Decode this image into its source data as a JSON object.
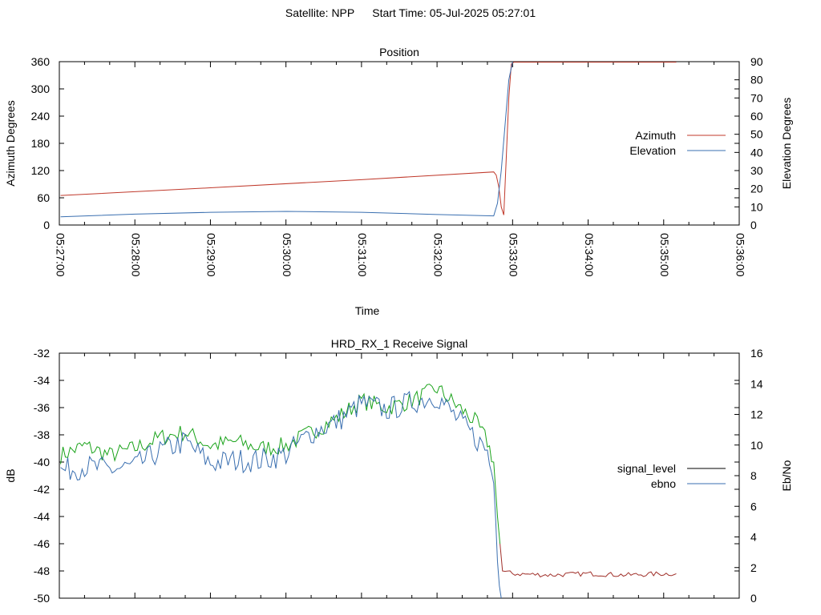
{
  "header": {
    "satellite": "Satellite: NPP",
    "start_time": "Start Time: 05-Jul-2025 05:27:01"
  },
  "colors": {
    "azimuth": "#c0392b",
    "elevation": "#3a6fb0",
    "signal_level_legend": "#000000",
    "signal_level": "#1aa31a",
    "signal_level_low": "#a0302a",
    "ebno": "#3a6fb0",
    "axes": "#000000"
  },
  "chart_data": [
    {
      "type": "line",
      "title": "Position",
      "xlabel": "Time",
      "ylabel": "Azimuth Degrees",
      "y2label": "Elevation Degrees",
      "xlim": [
        "05:27:00",
        "05:36:00"
      ],
      "xticks": [
        "05:27:00",
        "05:28:00",
        "05:29:00",
        "05:30:00",
        "05:31:00",
        "05:32:00",
        "05:33:00",
        "05:34:00",
        "05:35:00",
        "05:36:00"
      ],
      "ylim": [
        0,
        360
      ],
      "yticks": [
        0,
        60,
        120,
        180,
        240,
        300,
        360
      ],
      "y2lim": [
        0,
        90
      ],
      "y2ticks": [
        0,
        10,
        20,
        30,
        40,
        50,
        60,
        70,
        80,
        90
      ],
      "legend_position": "right",
      "series": [
        {
          "name": "Azimuth",
          "axis": "y",
          "x": [
            "05:27:01",
            "05:29:00",
            "05:31:00",
            "05:32:45",
            "05:32:47",
            "05:32:49",
            "05:32:51",
            "05:32:53",
            "05:32:55",
            "05:32:57",
            "05:32:59",
            "05:33:01",
            "05:35:10"
          ],
          "values": [
            65,
            82,
            100,
            117,
            110,
            85,
            40,
            22,
            150,
            280,
            355,
            359,
            359
          ]
        },
        {
          "name": "Elevation",
          "axis": "y2",
          "x": [
            "05:27:01",
            "05:28:00",
            "05:29:00",
            "05:30:00",
            "05:31:00",
            "05:32:00",
            "05:32:45",
            "05:32:48",
            "05:32:51",
            "05:32:54",
            "05:32:57",
            "05:33:00"
          ],
          "values": [
            4.5,
            6.0,
            7.0,
            7.5,
            7.0,
            5.8,
            5.0,
            12,
            30,
            55,
            80,
            90
          ]
        }
      ]
    },
    {
      "type": "line",
      "title": "HRD_RX_1 Receive Signal",
      "ylabel": "dB",
      "y2label": "Eb/No",
      "xlim": [
        "05:27:00",
        "05:36:00"
      ],
      "ylim": [
        -50,
        -32
      ],
      "yticks": [
        -50,
        -48,
        -46,
        -44,
        -42,
        -40,
        -38,
        -36,
        -34,
        -32
      ],
      "y2lim": [
        0,
        16
      ],
      "y2ticks": [
        0,
        2,
        4,
        6,
        8,
        10,
        12,
        14,
        16
      ],
      "legend_position": "right",
      "series": [
        {
          "name": "signal_level",
          "axis": "y",
          "x": [
            "05:27:01",
            "05:27:20",
            "05:27:40",
            "05:28:00",
            "05:28:20",
            "05:28:40",
            "05:29:00",
            "05:29:20",
            "05:29:40",
            "05:30:00",
            "05:30:20",
            "05:30:40",
            "05:31:00",
            "05:31:20",
            "05:31:40",
            "05:32:00",
            "05:32:15",
            "05:32:30",
            "05:32:40",
            "05:32:45",
            "05:32:48",
            "05:32:52",
            "05:33:00",
            "05:33:30",
            "05:34:00",
            "05:34:30",
            "05:35:00",
            "05:35:10"
          ],
          "values": [
            -39.5,
            -38.8,
            -39.5,
            -39.0,
            -38.2,
            -37.8,
            -38.8,
            -38.5,
            -39.0,
            -38.8,
            -37.8,
            -36.8,
            -35.5,
            -36.0,
            -35.5,
            -34.6,
            -35.8,
            -37.0,
            -38.5,
            -40.0,
            -44.0,
            -48.0,
            -48.2,
            -48.3,
            -48.2,
            -48.3,
            -48.2,
            -48.2
          ]
        },
        {
          "name": "ebno",
          "axis": "y2",
          "x": [
            "05:27:01",
            "05:27:20",
            "05:27:40",
            "05:28:00",
            "05:28:20",
            "05:28:40",
            "05:29:00",
            "05:29:20",
            "05:29:40",
            "05:30:00",
            "05:30:20",
            "05:30:40",
            "05:31:00",
            "05:31:20",
            "05:31:40",
            "05:32:00",
            "05:32:15",
            "05:32:30",
            "05:32:40",
            "05:32:45",
            "05:32:48",
            "05:32:51"
          ],
          "values": [
            8.3,
            8.6,
            8.4,
            8.6,
            9.6,
            10.2,
            8.8,
            9.0,
            9.0,
            9.4,
            10.8,
            11.5,
            12.7,
            12.3,
            12.8,
            13.2,
            11.8,
            10.5,
            9.6,
            7.5,
            3.0,
            0
          ]
        }
      ]
    }
  ]
}
